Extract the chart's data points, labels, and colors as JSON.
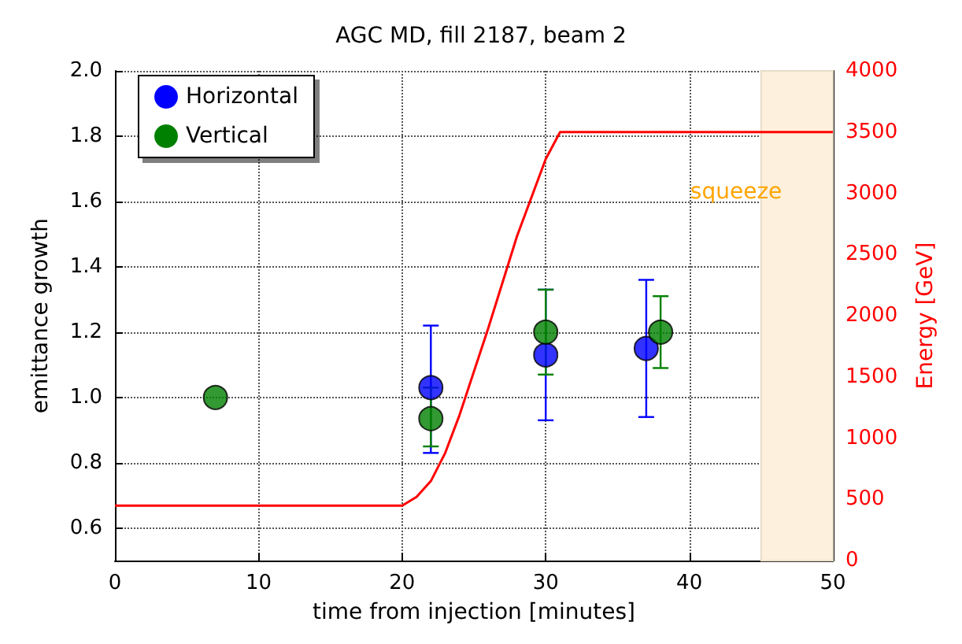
{
  "chart_data": {
    "type": "scatter",
    "title": "AGC MD, fill 2187, beam 2",
    "xlabel": "time from injection [minutes]",
    "ylabel": "emittance growth",
    "y2label": "Energy [GeV]",
    "series": [
      {
        "name": "Horizontal",
        "color": "#0000ff",
        "x": [
          22,
          30,
          37
        ],
        "values": [
          1.03,
          1.13,
          1.15
        ],
        "errors": [
          [
            0.83,
            1.22
          ],
          [
            0.93,
            1.33
          ],
          [
            0.94,
            1.36
          ]
        ]
      },
      {
        "name": "Vertical",
        "color": "#008000",
        "x": [
          7,
          22,
          30,
          38
        ],
        "values": [
          1.0,
          0.935,
          1.2,
          1.2
        ],
        "errors": [
          null,
          [
            0.85,
            1.03
          ],
          [
            1.07,
            1.33
          ],
          [
            1.09,
            1.31
          ]
        ]
      },
      {
        "type": "line",
        "axis": "y2",
        "color": "#ff0000",
        "marker": "none",
        "x": [
          0,
          20,
          21,
          22,
          23,
          24,
          26,
          28,
          30,
          31,
          50
        ],
        "values": [
          450,
          450,
          520,
          650,
          880,
          1190,
          1900,
          2650,
          3280,
          3500,
          3500
        ]
      }
    ],
    "xlim": [
      0,
      50
    ],
    "xticks": [
      0,
      10,
      20,
      30,
      40,
      50
    ],
    "ylim": [
      0.5,
      2.0
    ],
    "yticks": [
      0.6,
      0.8,
      {
        "value": 1,
        "label": "1.0"
      },
      1.2,
      1.4,
      1.6,
      1.8,
      {
        "value": 2,
        "label": "2.0"
      }
    ],
    "y2lim": [
      0,
      4000
    ],
    "y2ticks": [
      0,
      500,
      1000,
      1500,
      2000,
      2500,
      3000,
      3500,
      4000
    ],
    "bands": [
      {
        "axis": "x",
        "from": 45,
        "to": 50,
        "color": "#fdf0dc"
      }
    ],
    "annotations": [
      "squeeze"
    ],
    "grid": true,
    "legend": "top left",
    "marker": "circle"
  }
}
